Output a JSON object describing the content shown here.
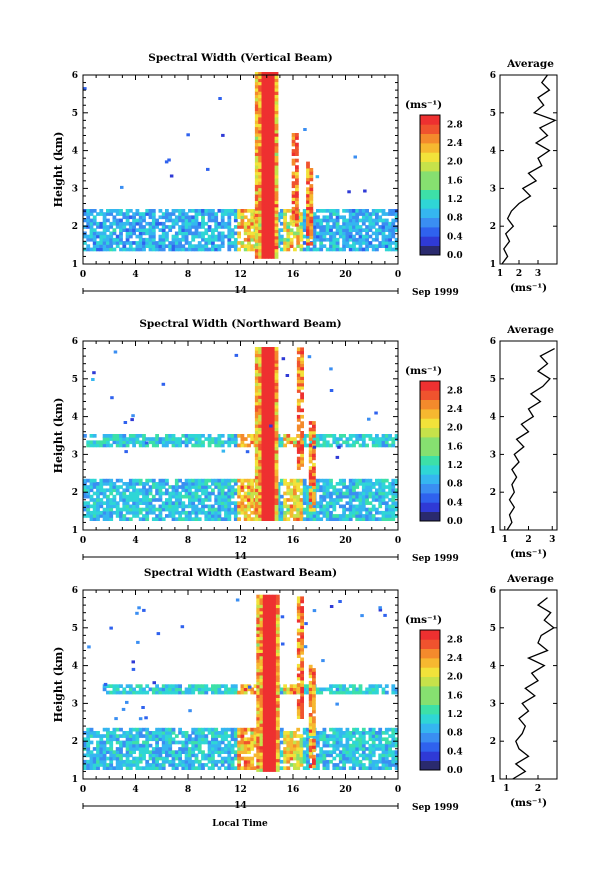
{
  "figure": {
    "date_label": "Sep 1999",
    "day_label": "14",
    "xlabel": "Local Time",
    "average_title": "Average",
    "average_xlabel": "(ms⁻¹)",
    "colorbar_title": "(ms⁻¹)",
    "xticks": [
      "0",
      "4",
      "8",
      "12",
      "16",
      "20",
      "0"
    ],
    "yticks": [
      "1",
      "2",
      "3",
      "4",
      "5",
      "6"
    ]
  },
  "chart_data": [
    {
      "type": "heatmap",
      "title": "Spectral Width (Vertical Beam)",
      "ylabel": "Height (km)",
      "xlim": [
        0,
        24
      ],
      "ylim": [
        1,
        6
      ],
      "colorbar": {
        "ticks": [
          "2.8",
          "2.4",
          "2.0",
          "1.6",
          "1.2",
          "0.8",
          "0.4",
          "0.0"
        ],
        "range": [
          0,
          3.0
        ]
      },
      "regions": [
        {
          "kind": "layer",
          "x0": 0,
          "x1": 24,
          "y0": 1.35,
          "y1": 2.45,
          "base": 0.6
        },
        {
          "kind": "convective",
          "x0": 13.1,
          "x1": 14.7,
          "y0": 1.15,
          "y1": 6.0
        },
        {
          "kind": "streak",
          "x0": 15.9,
          "x1": 16.2,
          "y0": 2.0,
          "y1": 4.4
        },
        {
          "kind": "streak",
          "x0": 17.0,
          "x1": 17.3,
          "y0": 1.5,
          "y1": 3.7
        }
      ],
      "average": {
        "xlim": [
          1,
          4
        ],
        "xticks": [
          "1",
          "2",
          "3"
        ],
        "heights": [
          1.0,
          1.2,
          1.4,
          1.6,
          1.8,
          2.0,
          2.2,
          2.4,
          2.6,
          2.8,
          3.0,
          3.2,
          3.4,
          3.6,
          3.8,
          4.0,
          4.2,
          4.4,
          4.6,
          4.8,
          5.0,
          5.2,
          5.4,
          5.6,
          5.8,
          6.0
        ],
        "values": [
          1.1,
          1.4,
          1.2,
          1.5,
          1.3,
          1.7,
          1.4,
          1.6,
          2.0,
          2.6,
          2.2,
          2.9,
          2.5,
          3.2,
          3.0,
          3.6,
          2.9,
          3.5,
          3.1,
          3.9,
          2.8,
          3.3,
          3.0,
          3.6,
          3.2,
          3.5
        ]
      }
    },
    {
      "type": "heatmap",
      "title": "Spectral Width (Northward Beam)",
      "ylabel": "Height (km)",
      "xlim": [
        0,
        24
      ],
      "ylim": [
        1,
        6
      ],
      "colorbar": {
        "ticks": [
          "2.8",
          "2.4",
          "2.0",
          "1.6",
          "1.2",
          "0.8",
          "0.4",
          "0.0"
        ],
        "range": [
          0,
          3.0
        ]
      },
      "regions": [
        {
          "kind": "layer",
          "x0": 0,
          "x1": 24,
          "y0": 1.25,
          "y1": 2.35,
          "base": 0.7
        },
        {
          "kind": "layer",
          "x0": 0,
          "x1": 24,
          "y0": 3.2,
          "y1": 3.5,
          "base": 0.8
        },
        {
          "kind": "convective",
          "x0": 13.1,
          "x1": 14.8,
          "y0": 1.25,
          "y1": 5.8
        },
        {
          "kind": "streak",
          "x0": 16.3,
          "x1": 16.6,
          "y0": 2.6,
          "y1": 5.8
        },
        {
          "kind": "streak",
          "x0": 17.2,
          "x1": 17.5,
          "y0": 1.5,
          "y1": 3.8
        }
      ],
      "average": {
        "xlim": [
          0.8,
          3.2
        ],
        "xticks": [
          "1",
          "2",
          "3"
        ],
        "heights": [
          1.0,
          1.2,
          1.4,
          1.6,
          1.8,
          2.0,
          2.2,
          2.4,
          2.6,
          2.8,
          3.0,
          3.2,
          3.4,
          3.6,
          3.8,
          4.0,
          4.2,
          4.4,
          4.6,
          4.8,
          5.0,
          5.2,
          5.4,
          5.6,
          5.8
        ],
        "values": [
          1.1,
          1.3,
          1.2,
          1.4,
          1.2,
          1.4,
          1.3,
          1.5,
          1.3,
          1.6,
          1.4,
          1.8,
          1.5,
          2.0,
          1.7,
          2.2,
          2.0,
          2.5,
          2.1,
          2.6,
          2.9,
          2.4,
          2.8,
          2.5,
          3.1
        ]
      }
    },
    {
      "type": "heatmap",
      "title": "Spectral Width (Eastward Beam)",
      "ylabel": "Height (km)",
      "xlim": [
        0,
        24
      ],
      "ylim": [
        1,
        6
      ],
      "colorbar": {
        "ticks": [
          "2.8",
          "2.4",
          "2.0",
          "1.6",
          "1.2",
          "0.8",
          "0.4",
          "0.0"
        ],
        "range": [
          0,
          3.0
        ]
      },
      "regions": [
        {
          "kind": "layer",
          "x0": 0,
          "x1": 24,
          "y0": 1.25,
          "y1": 2.3,
          "base": 0.7
        },
        {
          "kind": "layer",
          "x0": 1.5,
          "x1": 24,
          "y0": 3.25,
          "y1": 3.5,
          "base": 0.8
        },
        {
          "kind": "convective",
          "x0": 13.2,
          "x1": 14.9,
          "y0": 1.2,
          "y1": 5.8
        },
        {
          "kind": "streak",
          "x0": 16.3,
          "x1": 16.6,
          "y0": 2.6,
          "y1": 5.8
        },
        {
          "kind": "streak",
          "x0": 17.2,
          "x1": 17.5,
          "y0": 1.3,
          "y1": 4.0
        }
      ],
      "average": {
        "xlim": [
          0.8,
          2.6
        ],
        "xticks": [
          "1",
          "2"
        ],
        "heights": [
          1.0,
          1.2,
          1.4,
          1.6,
          1.8,
          2.0,
          2.2,
          2.4,
          2.6,
          2.8,
          3.0,
          3.2,
          3.4,
          3.6,
          3.8,
          4.0,
          4.2,
          4.4,
          4.6,
          4.8,
          5.0,
          5.2,
          5.4,
          5.6,
          5.8
        ],
        "values": [
          1.2,
          1.6,
          1.3,
          1.7,
          1.4,
          1.3,
          1.5,
          1.6,
          1.4,
          1.7,
          1.5,
          1.9,
          1.6,
          2.0,
          1.8,
          2.2,
          1.7,
          2.3,
          2.0,
          2.1,
          2.5,
          2.2,
          2.4,
          2.0,
          2.3
        ]
      }
    }
  ]
}
